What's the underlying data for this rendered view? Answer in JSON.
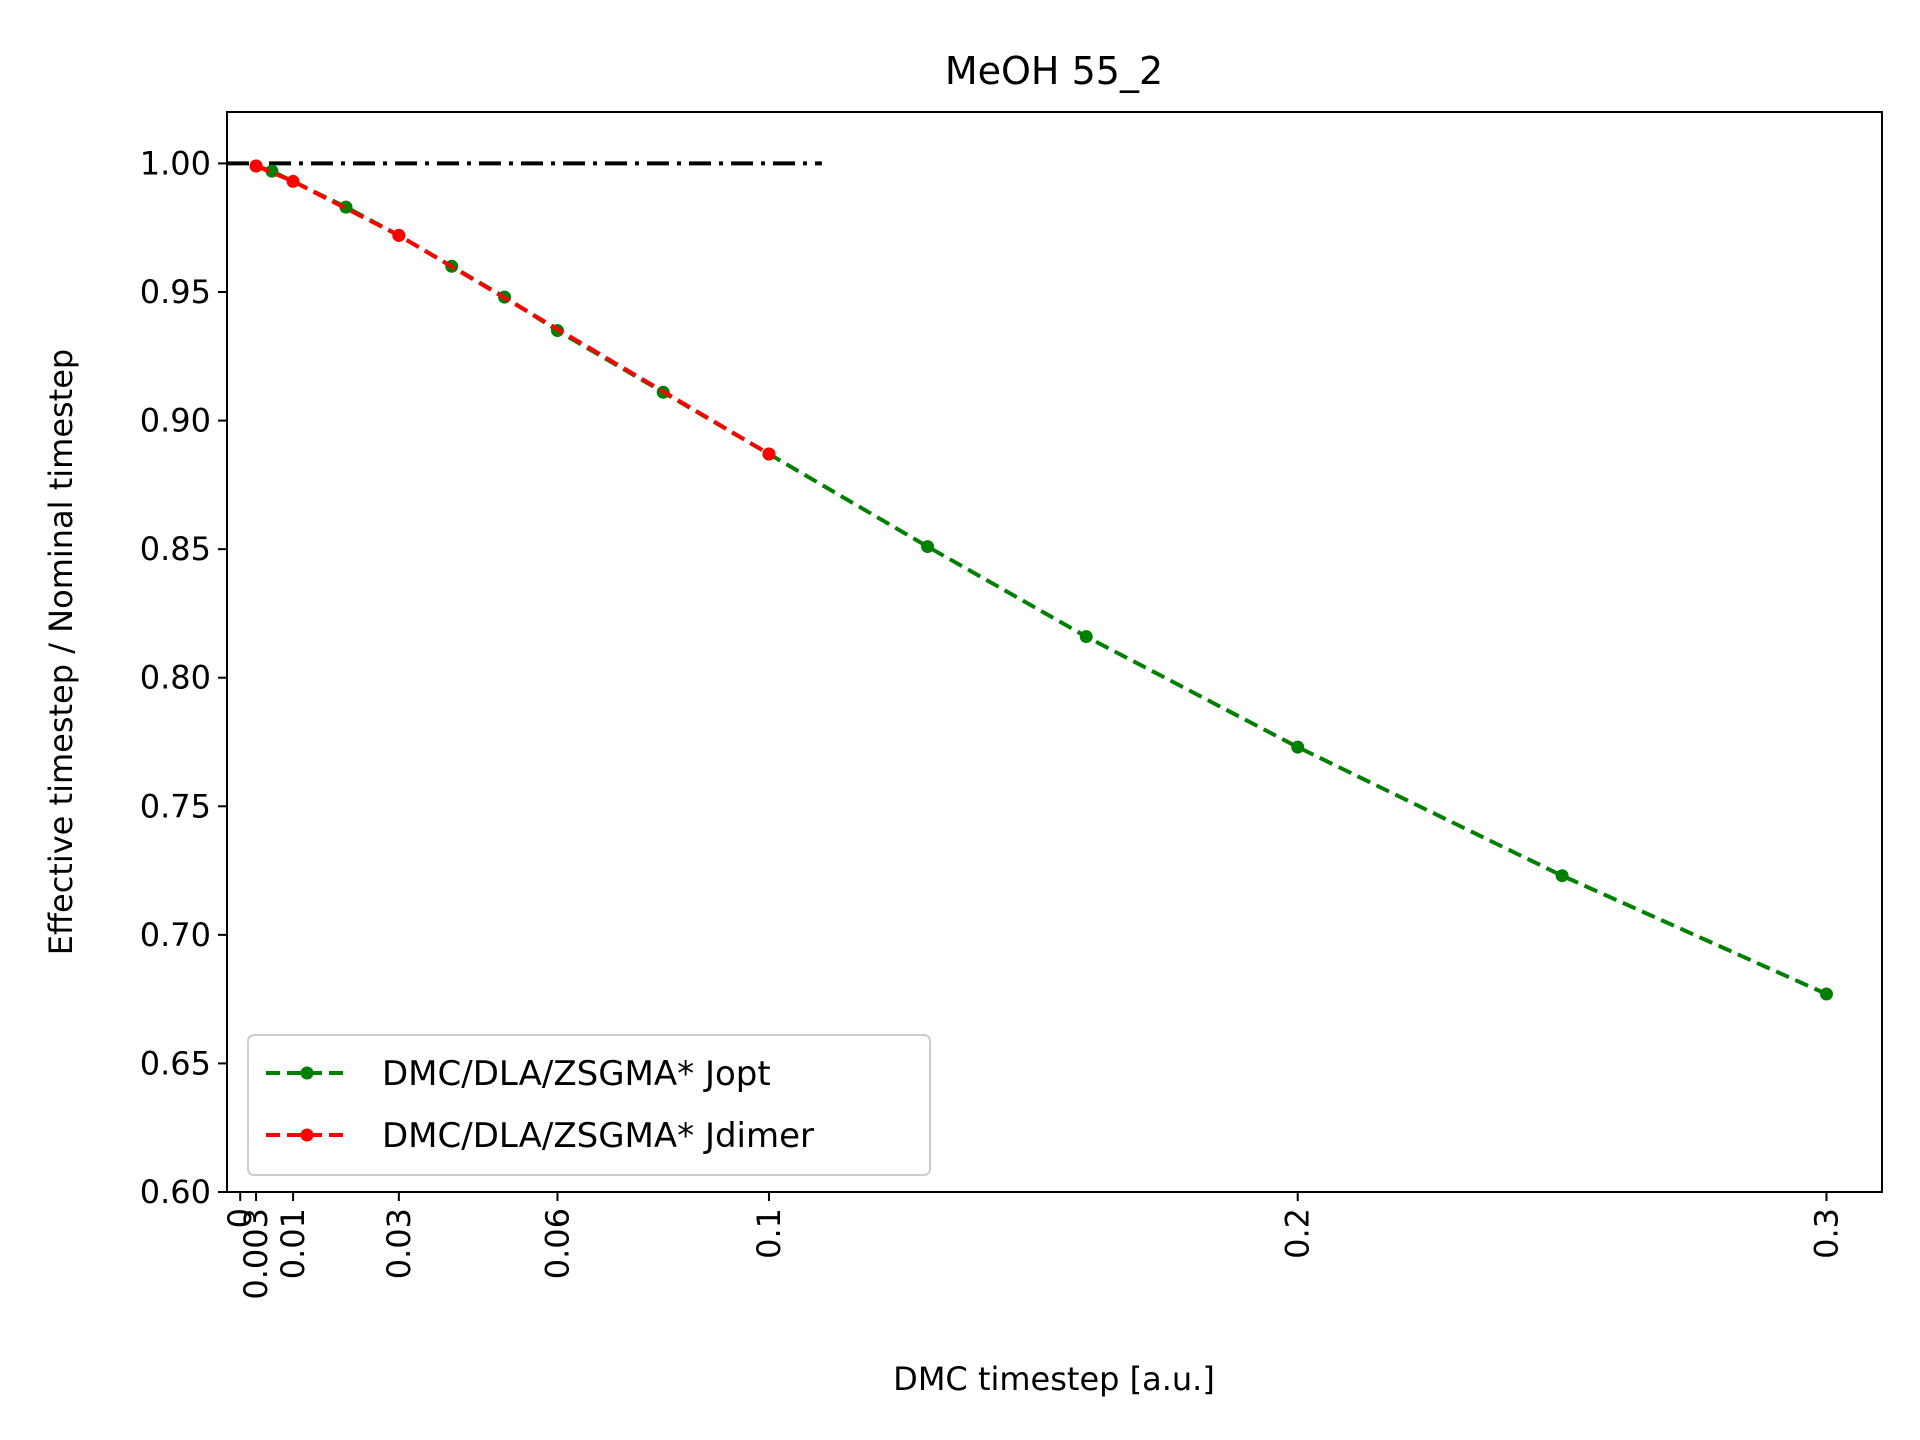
{
  "chart_data": {
    "type": "line",
    "title": "MeOH 55_2",
    "xlabel": "DMC timestep [a.u.]",
    "ylabel": "Effective timestep / Nominal timestep",
    "xlim": [
      -0.0025,
      0.3105
    ],
    "ylim": [
      0.6,
      1.02
    ],
    "x_ticks": [
      0,
      0.003,
      0.01,
      0.03,
      0.06,
      0.1,
      0.2,
      0.3
    ],
    "x_tick_labels": [
      "0",
      "0.003",
      "0.01",
      "0.03",
      "0.06",
      "0.1",
      "0.2",
      "0.3"
    ],
    "y_ticks": [
      0.6,
      0.65,
      0.7,
      0.75,
      0.8,
      0.85,
      0.9,
      0.95,
      1.0
    ],
    "y_tick_labels": [
      "0.60",
      "0.65",
      "0.70",
      "0.75",
      "0.80",
      "0.85",
      "0.90",
      "0.95",
      "1.00"
    ],
    "grid": false,
    "legend_position": "lower-left",
    "reference_line": {
      "y": 1.0,
      "x_range": [
        -0.0025,
        0.11
      ],
      "color": "#000000",
      "style": "dash-dot"
    },
    "series": [
      {
        "name": "DMC/DLA/ZSGMA* Jopt",
        "color": "#008000",
        "x": [
          0.003,
          0.006,
          0.02,
          0.03,
          0.04,
          0.05,
          0.06,
          0.08,
          0.1,
          0.13,
          0.16,
          0.2,
          0.25,
          0.3
        ],
        "y": [
          0.999,
          0.997,
          0.983,
          0.972,
          0.96,
          0.948,
          0.935,
          0.911,
          0.887,
          0.851,
          0.816,
          0.773,
          0.723,
          0.677
        ]
      },
      {
        "name": "DMC/DLA/ZSGMA* Jdimer",
        "color": "#ff0000",
        "x": [
          0.003,
          0.01,
          0.03,
          0.1
        ],
        "y": [
          0.999,
          0.993,
          0.972,
          0.887
        ]
      }
    ]
  }
}
